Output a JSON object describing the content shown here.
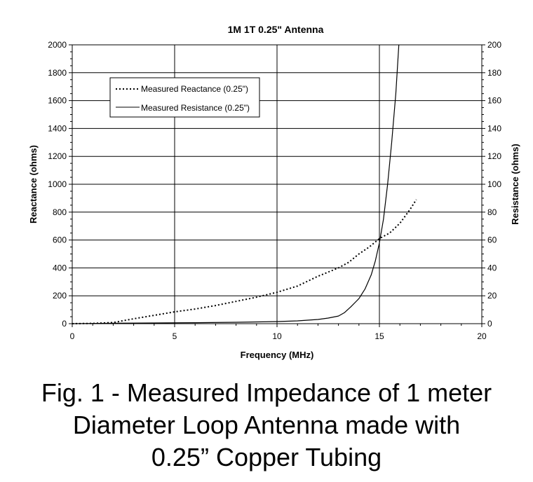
{
  "chart_data": {
    "type": "line",
    "title": "1M 1T 0.25\" Antenna",
    "xlabel": "Frequency (MHz)",
    "ylabel": "Reactance (ohms)",
    "y2label": "Resistance (ohms)",
    "xlim": [
      0,
      20
    ],
    "ylim": [
      0,
      2000
    ],
    "y2lim": [
      0,
      200
    ],
    "xticks": [
      0,
      5,
      10,
      15,
      20
    ],
    "yticks": [
      0,
      200,
      400,
      600,
      800,
      1000,
      1200,
      1400,
      1600,
      1800,
      2000
    ],
    "y2ticks": [
      0,
      20,
      40,
      60,
      80,
      100,
      120,
      140,
      160,
      180,
      200
    ],
    "grid": true,
    "legend_position": "top-left",
    "series": [
      {
        "name": "Measured Reactance (0.25\")",
        "axis": "left",
        "style": "dotted",
        "color": "#000000",
        "x": [
          0,
          1,
          2,
          3,
          4,
          5,
          6,
          7,
          8,
          9,
          10,
          11,
          12,
          13,
          13.5,
          14,
          14.5,
          15,
          15.5,
          16,
          16.5,
          16.8
        ],
        "y": [
          0,
          2,
          8,
          35,
          60,
          85,
          105,
          130,
          160,
          190,
          225,
          270,
          340,
          400,
          440,
          500,
          550,
          610,
          650,
          720,
          820,
          890
        ]
      },
      {
        "name": "Measured Resistance (0.25\")",
        "axis": "right",
        "style": "solid",
        "color": "#000000",
        "x": [
          0,
          2,
          4,
          6,
          8,
          10,
          11,
          12,
          12.5,
          13,
          13.3,
          13.6,
          14,
          14.3,
          14.6,
          14.8,
          15,
          15.2,
          15.4,
          15.6,
          15.8,
          15.95
        ],
        "y": [
          0,
          0.3,
          0.5,
          0.7,
          1,
          1.5,
          2,
          3,
          4,
          5.5,
          8,
          12,
          18,
          25,
          35,
          45,
          58,
          75,
          100,
          130,
          165,
          200
        ]
      }
    ]
  },
  "caption": {
    "line1": "Fig. 1 - Measured Impedance of 1 meter",
    "line2": "Diameter Loop Antenna made with",
    "line3": "0.25” Copper Tubing"
  }
}
